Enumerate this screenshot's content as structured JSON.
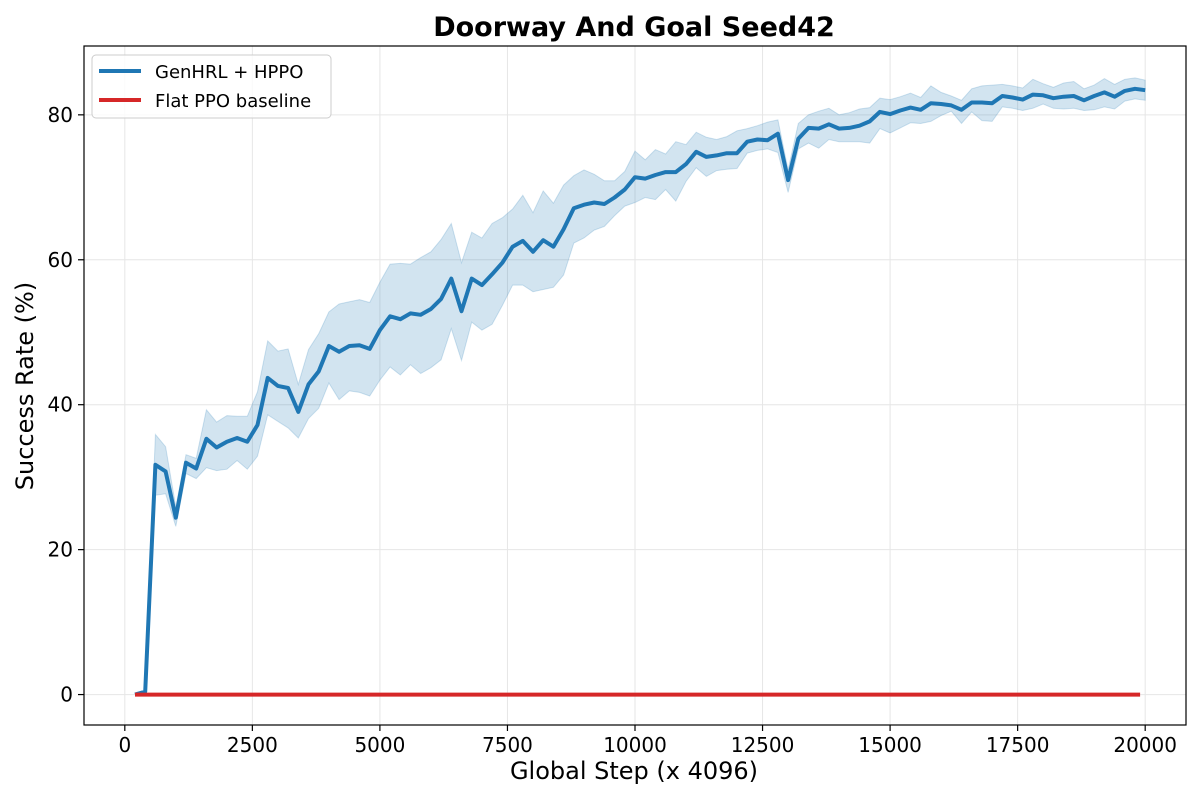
{
  "chart_data": {
    "type": "line",
    "title": "Doorway And Goal Seed42",
    "xlabel": "Global Step (x 4096)",
    "ylabel": "Success Rate (%)",
    "xlim": [
      -800,
      20800
    ],
    "ylim": [
      -4.2,
      89.5
    ],
    "xticks": [
      0,
      2500,
      5000,
      7500,
      10000,
      12500,
      15000,
      17500,
      20000
    ],
    "yticks": [
      0,
      20,
      40,
      60,
      80
    ],
    "grid": true,
    "legend_position": "top-left",
    "series": [
      {
        "name": "GenHRL + HPPO",
        "color": "#1f77b4",
        "band_color": "#1f77b4",
        "x": [
          200,
          400,
          600,
          800,
          1000,
          1200,
          1400,
          1600,
          1800,
          2000,
          2200,
          2400,
          2600,
          2800,
          3000,
          3200,
          3400,
          3600,
          3800,
          4000,
          4200,
          4400,
          4600,
          4800,
          5000,
          5200,
          5400,
          5600,
          5800,
          6000,
          6200,
          6400,
          6600,
          6800,
          7000,
          7200,
          7400,
          7600,
          7800,
          8000,
          8200,
          8400,
          8600,
          8800,
          9000,
          9200,
          9400,
          9600,
          9800,
          10000,
          10200,
          10400,
          10600,
          10800,
          11000,
          11200,
          11400,
          11600,
          11800,
          12000,
          12200,
          12400,
          12600,
          12800,
          13000,
          13200,
          13400,
          13600,
          13800,
          14000,
          14200,
          14400,
          14600,
          14800,
          15000,
          15200,
          15400,
          15600,
          15800,
          16000,
          16200,
          16400,
          16600,
          16800,
          17000,
          17200,
          17400,
          17600,
          17800,
          18000,
          18200,
          18400,
          18600,
          18800,
          19000,
          19200,
          19400,
          19600,
          19800,
          20000
        ],
        "values": [
          0.0,
          0.4,
          31.7,
          30.8,
          24.4,
          32.0,
          31.2,
          35.3,
          34.1,
          34.9,
          35.4,
          34.9,
          37.2,
          43.7,
          42.6,
          42.3,
          39.0,
          42.8,
          44.6,
          48.1,
          47.3,
          48.1,
          48.2,
          47.7,
          50.3,
          52.2,
          51.8,
          52.6,
          52.4,
          53.2,
          54.6,
          57.4,
          52.9,
          57.4,
          56.5,
          58.0,
          59.6,
          61.8,
          62.6,
          61.1,
          62.7,
          61.8,
          64.2,
          67.1,
          67.6,
          67.9,
          67.7,
          68.6,
          69.7,
          71.4,
          71.2,
          71.7,
          72.1,
          72.1,
          73.2,
          74.9,
          74.2,
          74.4,
          74.7,
          74.7,
          76.3,
          76.6,
          76.5,
          77.4,
          71.0,
          76.7,
          78.2,
          78.1,
          78.7,
          78.1,
          78.2,
          78.5,
          79.1,
          80.4,
          80.1,
          80.6,
          81.0,
          80.7,
          81.6,
          81.5,
          81.3,
          80.7,
          81.7,
          81.7,
          81.6,
          82.6,
          82.4,
          82.1,
          82.8,
          82.7,
          82.3,
          82.5,
          82.6,
          82.0,
          82.6,
          83.1,
          82.5,
          83.3,
          83.6,
          83.4
        ],
        "lower": [
          0.0,
          0.3,
          27.5,
          27.7,
          23.2,
          30.5,
          29.8,
          31.3,
          30.9,
          31.1,
          32.3,
          31.1,
          32.9,
          38.6,
          37.7,
          36.8,
          35.4,
          38.1,
          39.5,
          43.0,
          40.7,
          41.9,
          41.7,
          41.2,
          43.4,
          45.2,
          44.1,
          45.5,
          44.3,
          45.1,
          46.2,
          50.5,
          46.1,
          51.4,
          50.3,
          51.1,
          53.7,
          56.5,
          56.5,
          55.6,
          55.9,
          56.2,
          57.9,
          62.3,
          63.0,
          64.1,
          64.6,
          66.1,
          67.4,
          67.9,
          68.6,
          68.3,
          69.7,
          68.1,
          70.8,
          72.7,
          71.5,
          72.3,
          72.5,
          72.6,
          74.7,
          75.1,
          75.3,
          74.8,
          69.3,
          75.3,
          76.1,
          75.4,
          76.6,
          76.3,
          76.3,
          76.3,
          76.1,
          78.1,
          77.5,
          78.2,
          78.9,
          78.8,
          79.1,
          79.9,
          80.5,
          78.8,
          80.4,
          79.2,
          79.1,
          81.1,
          80.9,
          80.6,
          80.9,
          81.5,
          80.9,
          80.8,
          80.9,
          80.6,
          80.7,
          81.1,
          80.8,
          81.9,
          82.2,
          82.0
        ],
        "upper": [
          0.0,
          0.6,
          35.9,
          34.2,
          25.9,
          33.1,
          32.6,
          39.3,
          37.6,
          38.5,
          38.4,
          38.4,
          41.8,
          48.8,
          47.4,
          47.7,
          42.8,
          47.6,
          49.8,
          52.8,
          53.9,
          54.2,
          54.5,
          54.1,
          56.9,
          59.4,
          59.5,
          59.4,
          60.3,
          61.1,
          62.8,
          65.0,
          59.6,
          63.8,
          63.0,
          65.0,
          65.8,
          67.0,
          68.9,
          66.5,
          69.5,
          67.8,
          70.3,
          71.6,
          72.4,
          71.8,
          70.9,
          70.9,
          72.2,
          75.0,
          73.8,
          75.2,
          74.6,
          76.3,
          75.9,
          77.6,
          76.9,
          76.6,
          77.0,
          77.8,
          78.1,
          78.5,
          79.0,
          79.3,
          72.4,
          78.8,
          80.0,
          80.5,
          80.9,
          80.0,
          80.3,
          80.8,
          81.0,
          82.3,
          82.1,
          82.5,
          83.0,
          82.4,
          84.0,
          83.1,
          82.6,
          82.0,
          83.6,
          84.0,
          84.1,
          84.2,
          84.0,
          83.7,
          84.9,
          84.3,
          83.8,
          84.4,
          84.6,
          83.6,
          84.1,
          85.0,
          84.2,
          84.9,
          85.1,
          84.8
        ]
      },
      {
        "name": "Flat PPO baseline",
        "color": "#d62728",
        "x": [
          200,
          19900
        ],
        "values": [
          0,
          0
        ]
      }
    ]
  }
}
